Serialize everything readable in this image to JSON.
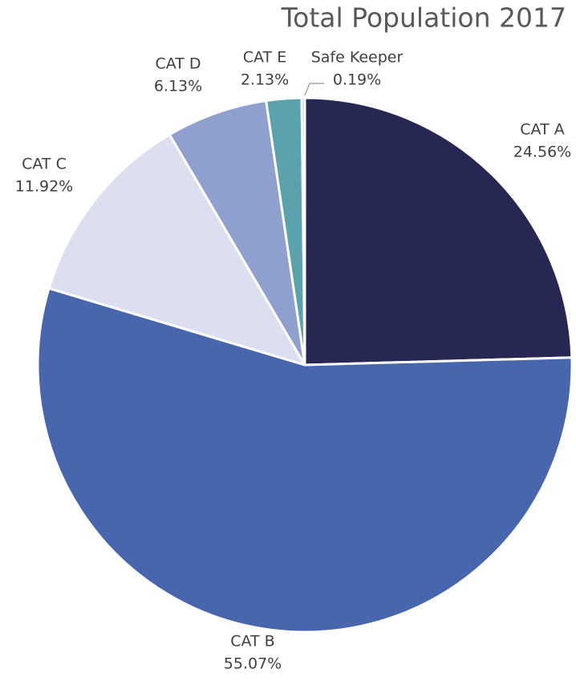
{
  "chart_data": {
    "type": "pie",
    "title": "Total Population 2017",
    "categories": [
      "CAT A",
      "CAT B",
      "CAT C",
      "CAT D",
      "CAT E",
      "Safe Keeper"
    ],
    "values": [
      24.56,
      55.07,
      11.92,
      6.13,
      2.13,
      0.19
    ],
    "value_labels": [
      "24.56%",
      "55.07%",
      "11.92%",
      "6.13%",
      "2.13%",
      "0.19%"
    ],
    "colors": [
      "#262752",
      "#4866ad",
      "#dcdff0",
      "#8fa0cf",
      "#5aa3ad",
      "#a9c4c9"
    ]
  }
}
